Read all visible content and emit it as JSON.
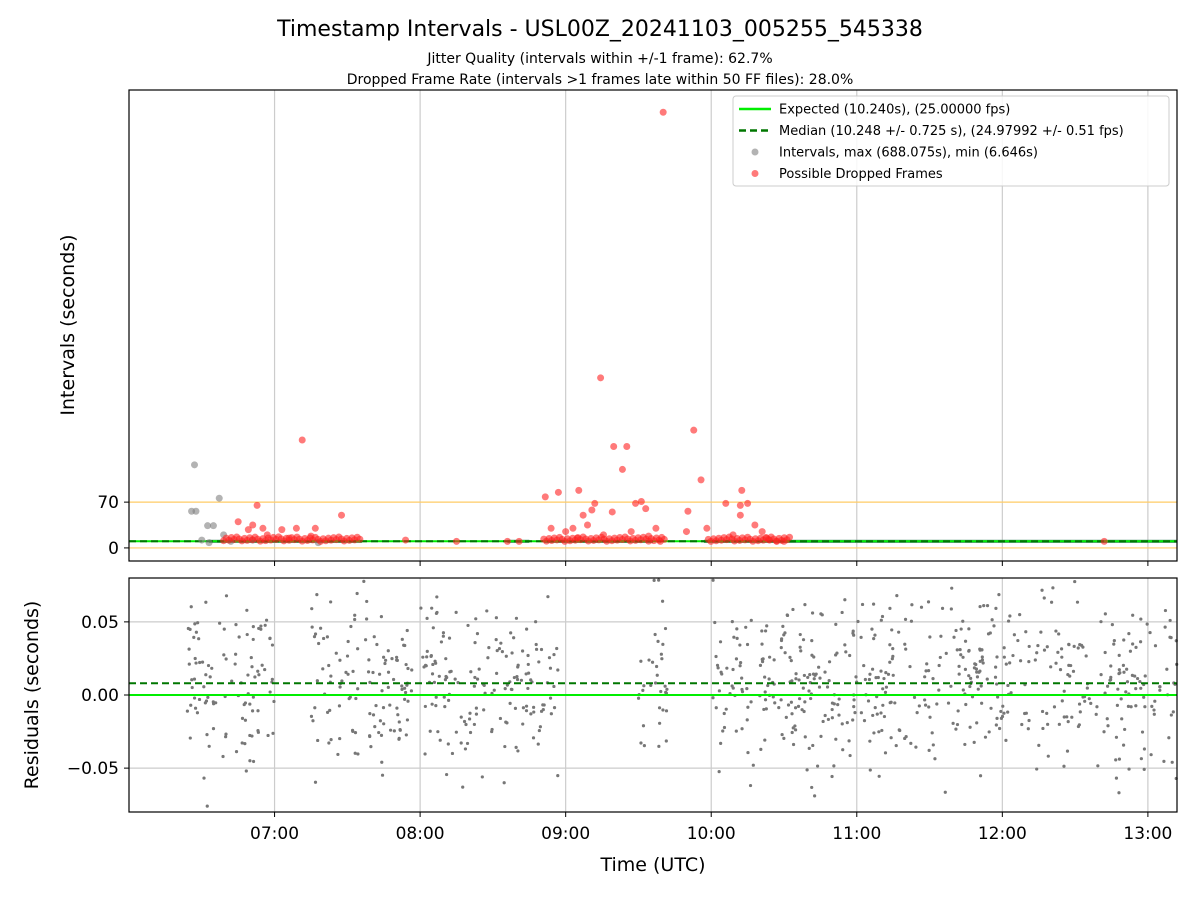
{
  "chart_data": [
    {
      "type": "scatter",
      "title": "Timestamp Intervals - USL00Z_20241103_005255_545338",
      "subtitle_lines": [
        "Jitter Quality (intervals within +/-1 frame): 62.7%",
        "Dropped Frame Rate (intervals >1 frames late within 50 FF files): 28.0%"
      ],
      "xlabel": "",
      "ylabel": "Intervals (seconds)",
      "x_range_hours": [
        6.0,
        13.2
      ],
      "ylim": [
        -20,
        700
      ],
      "yticks": [
        0,
        70
      ],
      "x_tick_hours": [
        7,
        8,
        9,
        10,
        11,
        12,
        13
      ],
      "x_tick_labels": [
        "07:00",
        "08:00",
        "09:00",
        "10:00",
        "11:00",
        "12:00",
        "13:00"
      ],
      "grid": "x only",
      "reference_lines": [
        {
          "value": 70,
          "color": "#ffcc66"
        },
        {
          "value": 0,
          "color": "#ffcc66"
        }
      ],
      "series": [
        {
          "name": "Expected (10.240s), (25.00000 fps)",
          "kind": "line",
          "value": 10.24,
          "color": "#00ee00"
        },
        {
          "name": "Median (10.248 +/- 0.725 s), (24.97992 +/- 0.51 fps)",
          "kind": "dashed-line",
          "value": 10.248,
          "color": "#007700"
        },
        {
          "name": "Intervals, max (688.075s), min (6.646s)",
          "kind": "points",
          "color": "#808080",
          "points": [
            [
              6.45,
              127
            ],
            [
              6.43,
              56
            ],
            [
              6.46,
              56
            ],
            [
              6.54,
              34
            ],
            [
              6.58,
              34
            ],
            [
              6.62,
              76
            ],
            [
              6.65,
              20
            ],
            [
              6.5,
              12
            ],
            [
              6.55,
              8
            ],
            [
              6.7,
              10
            ],
            [
              7.3,
              8
            ],
            [
              6.85,
              12
            ]
          ]
        },
        {
          "name": "Possible Dropped Frames",
          "kind": "points",
          "color": "#ff2222",
          "points": [
            [
              6.88,
              65
            ],
            [
              6.75,
              40
            ],
            [
              6.82,
              28
            ],
            [
              6.92,
              30
            ],
            [
              7.05,
              28
            ],
            [
              7.15,
              30
            ],
            [
              7.19,
              165
            ],
            [
              7.28,
              30
            ],
            [
              7.46,
              50
            ],
            [
              6.85,
              35
            ],
            [
              6.95,
              20
            ],
            [
              7.1,
              15
            ],
            [
              7.25,
              18
            ],
            [
              7.9,
              12
            ],
            [
              8.25,
              10
            ],
            [
              8.6,
              10
            ],
            [
              8.68,
              10
            ],
            [
              8.86,
              78
            ],
            [
              8.95,
              85
            ],
            [
              9.0,
              25
            ],
            [
              9.05,
              30
            ],
            [
              9.09,
              88
            ],
            [
              9.12,
              50
            ],
            [
              9.15,
              35
            ],
            [
              9.18,
              58
            ],
            [
              9.2,
              68
            ],
            [
              9.24,
              260
            ],
            [
              9.32,
              55
            ],
            [
              9.33,
              155
            ],
            [
              9.39,
              120
            ],
            [
              9.42,
              155
            ],
            [
              9.48,
              68
            ],
            [
              9.52,
              71
            ],
            [
              9.55,
              60
            ],
            [
              9.62,
              30
            ],
            [
              9.65,
              10
            ],
            [
              9.67,
              666
            ],
            [
              9.83,
              25
            ],
            [
              9.84,
              56
            ],
            [
              9.88,
              180
            ],
            [
              9.93,
              104
            ],
            [
              9.97,
              30
            ],
            [
              10.1,
              68
            ],
            [
              10.2,
              65
            ],
            [
              10.2,
              50
            ],
            [
              10.21,
              88
            ],
            [
              10.25,
              68
            ],
            [
              10.3,
              35
            ],
            [
              10.35,
              25
            ],
            [
              10.4,
              12
            ],
            [
              10.45,
              10
            ],
            [
              10.5,
              10
            ],
            [
              12.7,
              10
            ],
            [
              8.9,
              30
            ],
            [
              9.08,
              15
            ],
            [
              9.26,
              20
            ],
            [
              9.45,
              25
            ],
            [
              9.57,
              18
            ],
            [
              10.15,
              20
            ],
            [
              10.38,
              15
            ]
          ]
        }
      ],
      "legend_placement": "top-right"
    },
    {
      "type": "scatter",
      "title": "",
      "xlabel": "Time (UTC)",
      "ylabel": "Residuals (seconds)",
      "x_range_hours": [
        6.0,
        13.2
      ],
      "ylim": [
        -0.08,
        0.08
      ],
      "yticks": [
        0.05,
        0.0,
        -0.05
      ],
      "ytick_labels": [
        "0.05",
        "0.00",
        "−0.05"
      ],
      "x_tick_hours": [
        7,
        8,
        9,
        10,
        11,
        12,
        13
      ],
      "x_tick_labels": [
        "07:00",
        "08:00",
        "09:00",
        "10:00",
        "11:00",
        "12:00",
        "13:00"
      ],
      "grid": "both",
      "reference_lines": [
        {
          "value": 0.0,
          "style": "solid",
          "color": "#00ee00"
        },
        {
          "value": 0.008,
          "style": "dashed",
          "color": "#007700"
        }
      ],
      "residual_spread": {
        "center": 0.008,
        "std": 0.03,
        "point_color": "#777777"
      },
      "residual_windows_hours": [
        [
          6.4,
          6.65
        ],
        [
          6.65,
          7.0
        ],
        [
          7.25,
          7.95
        ],
        [
          8.0,
          8.95
        ],
        [
          9.5,
          9.7
        ],
        [
          9.98,
          13.2
        ]
      ]
    }
  ],
  "colors": {
    "expected": "#00ee00",
    "median": "#007700",
    "intervals": "#808080",
    "dropped": "#ff2222",
    "band": "#4a8a6a"
  }
}
